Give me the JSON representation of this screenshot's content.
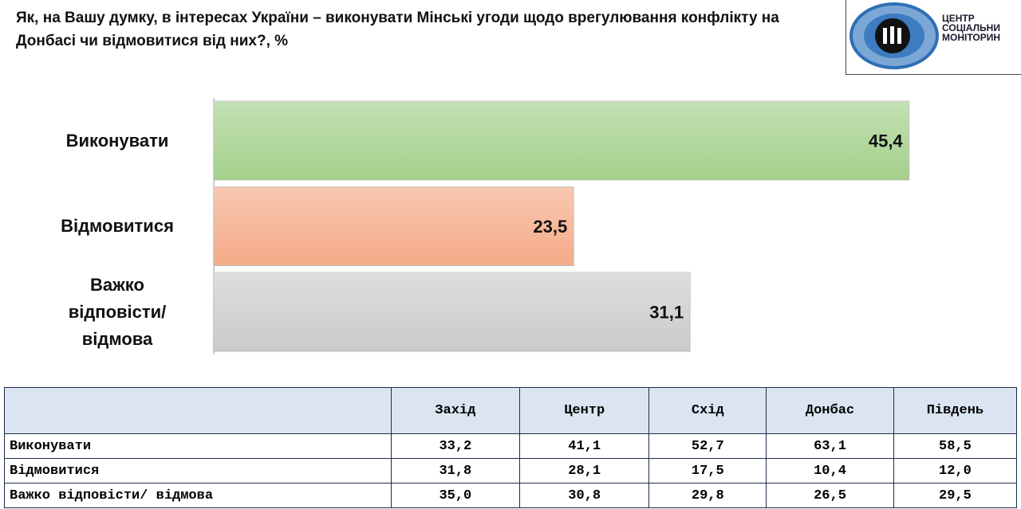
{
  "chart_data": {
    "type": "bar",
    "orientation": "horizontal",
    "title": "Як, на Вашу думку, в інтересах України – виконувати  Мінські угоди щодо врегулювання конфлікту на Донбасі чи відмовитися від них?, %",
    "categories": [
      "Виконувати",
      "Відмовитися",
      "Важко відповісти/ відмова"
    ],
    "values": [
      45.4,
      23.5,
      31.1
    ],
    "value_labels": [
      "45,4",
      "23,5",
      "31,1"
    ],
    "colors": [
      "#a3d08a",
      "#f5ab88",
      "#cbcbcb"
    ]
  },
  "logo": {
    "lines": [
      "ЦЕНТР",
      "СОЦІАЛЬНИ",
      "МОНІТОРИН"
    ]
  },
  "table": {
    "header": [
      "Захід",
      "Центр",
      "Схід",
      "Донбас",
      "Південь"
    ],
    "rows": [
      [
        "Виконувати",
        "33,2",
        "41,1",
        "52,7",
        "63,1",
        "58,5"
      ],
      [
        "Відмовитися",
        "31,8",
        "28,1",
        "17,5",
        "10,4",
        "12,0"
      ],
      [
        "Важко відповісти/ відмова",
        "35,0",
        "30,8",
        "29,8",
        "26,5",
        "29,5"
      ]
    ]
  }
}
